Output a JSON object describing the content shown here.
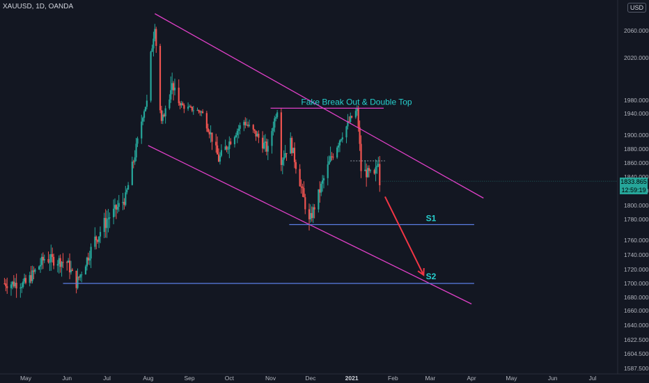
{
  "header": {
    "symbol": "XAUUSD, 1D, OANDA",
    "currency": "USD"
  },
  "price_badges": {
    "last": "1833.865",
    "countdown": "12:59:19"
  },
  "annotations": {
    "title": "Fake Break Out & Double Top",
    "s1": "S1",
    "s2": "S2"
  },
  "colors": {
    "background": "#131722",
    "channel": "#e040c8",
    "support": "#5b7ee6",
    "arrow": "#f23645",
    "label": "#26d0ce",
    "up": "#26a69a",
    "down": "#ef5350",
    "badge": "#26a69a"
  },
  "chart_data": {
    "type": "candlestick",
    "title": "Fake Break Out & Double Top",
    "y_axis": {
      "ticks": [
        1587.5,
        1604.5,
        1622.5,
        1640,
        1660,
        1680,
        1700,
        1720,
        1740,
        1760,
        1780,
        1800,
        1820,
        1840,
        1860,
        1880,
        1900,
        1940,
        1980,
        2020,
        2060
      ],
      "tick_labels": [
        "1587.500",
        "1604.500",
        "1622.500",
        "1640.000",
        "1660.000",
        "1680.000",
        "1700.000",
        "1720.000",
        "1740.000",
        "1760.000",
        "1780.000",
        "1800.000",
        "1820.000",
        "1840.000",
        "1860.000",
        "1880.000",
        "1900.000",
        "1940.000",
        "1980.000",
        "2020.000",
        "2060.000"
      ],
      "ylim": [
        1580,
        2100
      ]
    },
    "x_axis": {
      "labels": [
        "May",
        "Jun",
        "Jul",
        "Aug",
        "Sep",
        "Oct",
        "Nov",
        "Dec",
        "2021",
        "Feb",
        "Mar",
        "Apr",
        "May",
        "Jun",
        "Jul"
      ],
      "dates": [
        "2020-05-01",
        "2020-06-01",
        "2020-07-01",
        "2020-08-01",
        "2020-09-01",
        "2020-10-01",
        "2020-11-01",
        "2020-12-01",
        "2021-01-01",
        "2021-02-01",
        "2021-03-01",
        "2021-04-01",
        "2021-05-01",
        "2021-06-01",
        "2021-07-01"
      ]
    },
    "price_path": [
      [
        "2020-04-15",
        1700
      ],
      [
        "2020-05-01",
        1700
      ],
      [
        "2020-05-15",
        1735
      ],
      [
        "2020-06-01",
        1730
      ],
      [
        "2020-06-08",
        1700
      ],
      [
        "2020-06-22",
        1760
      ],
      [
        "2020-07-01",
        1780
      ],
      [
        "2020-07-15",
        1810
      ],
      [
        "2020-07-24",
        1890
      ],
      [
        "2020-07-31",
        1975
      ],
      [
        "2020-08-06",
        2070
      ],
      [
        "2020-08-11",
        1920
      ],
      [
        "2020-08-18",
        1995
      ],
      [
        "2020-08-28",
        1960
      ],
      [
        "2020-09-10",
        1945
      ],
      [
        "2020-09-23",
        1865
      ],
      [
        "2020-10-12",
        1925
      ],
      [
        "2020-10-30",
        1878
      ],
      [
        "2020-11-06",
        1950
      ],
      [
        "2020-11-09",
        1865
      ],
      [
        "2020-11-16",
        1890
      ],
      [
        "2020-11-30",
        1776
      ],
      [
        "2020-12-16",
        1865
      ],
      [
        "2021-01-05",
        1950
      ],
      [
        "2021-01-08",
        1850
      ],
      [
        "2021-01-18",
        1840
      ],
      [
        "2021-01-21",
        1865
      ],
      [
        "2021-01-22",
        1833.865
      ]
    ],
    "channel_upper": [
      [
        "2020-08-06",
        2085
      ],
      [
        "2021-04-10",
        1810
      ]
    ],
    "channel_lower": [
      [
        "2020-08-01",
        1885
      ],
      [
        "2021-04-01",
        1670
      ]
    ],
    "resistance": {
      "from": "2020-11-01",
      "to": "2021-01-25",
      "value": 1956
    },
    "support_levels": [
      {
        "name": "S1",
        "value": 1775,
        "from": "2020-11-15",
        "to": "2021-04-03"
      },
      {
        "name": "S2",
        "value": 1700,
        "from": "2020-05-29",
        "to": "2021-04-03"
      }
    ],
    "projection_arrow": {
      "from": [
        "2021-01-26",
        1812
      ],
      "to": [
        "2021-02-24",
        1712
      ]
    },
    "last_price": 1833.865
  }
}
